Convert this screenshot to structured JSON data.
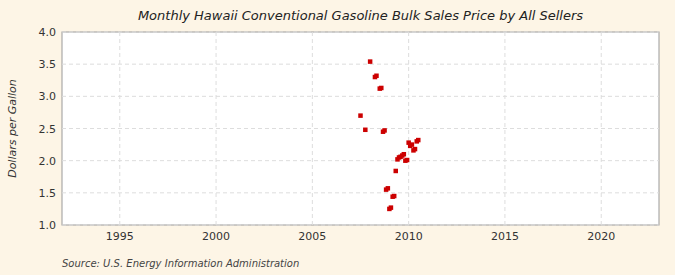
{
  "chart_data": {
    "type": "scatter",
    "title": "Monthly Hawaii Conventional Gasoline Bulk Sales Price by All Sellers",
    "y_label": "Dollars per Gallon",
    "annotations": [
      "Source: U.S. Energy Information Administration"
    ],
    "x": [
      2007.5,
      2007.75,
      2008.0,
      2008.25,
      2008.33,
      2008.5,
      2008.58,
      2008.67,
      2008.75,
      2008.83,
      2008.92,
      2009.0,
      2009.08,
      2009.17,
      2009.25,
      2009.33,
      2009.42,
      2009.5,
      2009.58,
      2009.67,
      2009.75,
      2009.83,
      2009.92,
      2010.0,
      2010.08,
      2010.17,
      2010.25,
      2010.33,
      2010.42,
      2010.5
    ],
    "values": [
      2.7,
      2.48,
      3.54,
      3.3,
      3.32,
      3.12,
      3.13,
      2.45,
      2.47,
      1.55,
      1.57,
      1.25,
      1.27,
      1.44,
      1.45,
      1.84,
      2.02,
      2.05,
      2.06,
      2.08,
      2.1,
      2.0,
      2.01,
      2.28,
      2.23,
      2.25,
      2.16,
      2.18,
      2.3,
      2.32
    ],
    "color": "#cc0000",
    "marker": "square",
    "xlim": [
      1992,
      2023
    ],
    "ylim": [
      1.0,
      4.0
    ],
    "xticks": [
      1995,
      2000,
      2005,
      2010,
      2015,
      2020
    ],
    "yticks": [
      {
        "value": 1.0,
        "label": "1.0"
      },
      {
        "value": 1.5,
        "label": "1.5"
      },
      {
        "value": 2.0,
        "label": "2.0"
      },
      {
        "value": 2.5,
        "label": "2.5"
      },
      {
        "value": 3.0,
        "label": "3.0"
      },
      {
        "value": 3.5,
        "label": "3.5"
      },
      {
        "value": 4.0,
        "label": "4.0"
      }
    ],
    "grid": true
  }
}
